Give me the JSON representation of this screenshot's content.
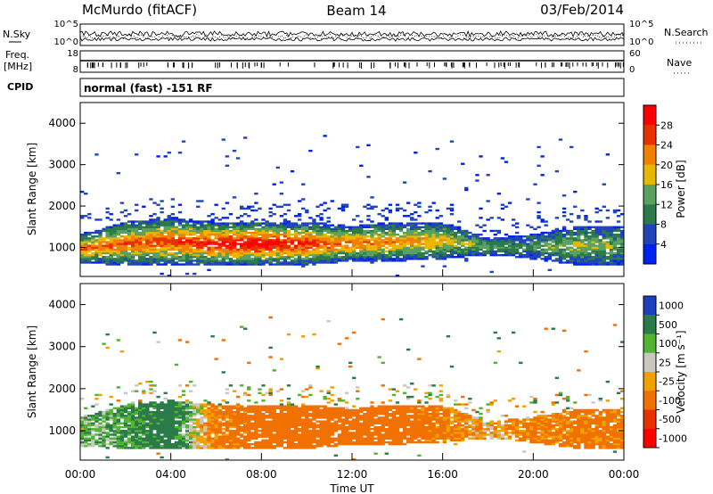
{
  "header": {
    "station": "McMurdo (fitACF)",
    "beam": "Beam 14",
    "date": "03/Feb/2014"
  },
  "top_panels": {
    "nsky_label": "N.Sky",
    "nsearch_label": "N.Search",
    "noise_ticks": [
      "10^5",
      "10^0"
    ],
    "freq_label_1": "Freq.",
    "freq_label_2": "[MHz]",
    "freq_ticks": [
      "18",
      "8"
    ],
    "nave_label": "Nave",
    "nave_ticks": [
      "60",
      "0"
    ],
    "cpid_label": "CPID",
    "cpid_value": "normal (fast) -151 RF"
  },
  "colors": {
    "power_scale": [
      "#0022ee",
      "#2244bb",
      "#2a7a4a",
      "#5aa060",
      "#e8b800",
      "#f08000",
      "#e83000",
      "#ff0000"
    ],
    "velocity_scale": [
      "#1c3fbb",
      "#2a7a4a",
      "#52b430",
      "#c8c8c0",
      "#f0a000",
      "#f07000",
      "#e83000",
      "#ff0000"
    ]
  },
  "chart_data": [
    {
      "type": "heatmap",
      "name": "power",
      "ylabel": "Slant Range [km]",
      "yticks": [
        "1000",
        "2000",
        "3000",
        "4000"
      ],
      "ylim": [
        300,
        4500
      ],
      "colorbar_label": "Power [dB]",
      "colorbar_ticks": [
        "4",
        "8",
        "12",
        "16",
        "20",
        "24",
        "28"
      ],
      "echo_band": {
        "x_hours": [
          0,
          2,
          4,
          6,
          8,
          10,
          12,
          14,
          16,
          18,
          20,
          22,
          24
        ],
        "lower_km": [
          600,
          550,
          550,
          550,
          550,
          550,
          650,
          650,
          700,
          800,
          700,
          550,
          550
        ],
        "upper_km": [
          1300,
          1600,
          1700,
          1600,
          1600,
          1600,
          1500,
          1600,
          1600,
          1200,
          1300,
          1500,
          1500
        ],
        "peak_power_db": [
          22,
          24,
          24,
          28,
          30,
          26,
          22,
          20,
          18,
          12,
          10,
          16,
          12
        ]
      }
    },
    {
      "type": "heatmap",
      "name": "velocity",
      "xlabel": "Time UT",
      "xticks": [
        "00:00",
        "04:00",
        "08:00",
        "12:00",
        "16:00",
        "20:00",
        "00:00"
      ],
      "ylabel": "Slant Range [km]",
      "yticks": [
        "1000",
        "2000",
        "3000",
        "4000"
      ],
      "ylim": [
        300,
        4500
      ],
      "colorbar_label": "Velocity [m s⁻¹]",
      "colorbar_ticks": [
        "1000",
        "500",
        "100",
        "25",
        "-25",
        "-100",
        "-500",
        "-1000"
      ],
      "echo_band": {
        "x_hours": [
          0,
          2,
          4,
          6,
          8,
          10,
          12,
          14,
          16,
          18,
          20,
          22,
          24
        ],
        "lower_km": [
          600,
          550,
          550,
          550,
          550,
          550,
          650,
          650,
          700,
          800,
          700,
          550,
          550
        ],
        "upper_km": [
          1300,
          1600,
          1700,
          1600,
          1600,
          1600,
          1500,
          1600,
          1600,
          1200,
          1300,
          1500,
          1500
        ],
        "dominant_velocity": [
          50,
          100,
          200,
          -150,
          -200,
          -200,
          -200,
          -200,
          -150,
          -50,
          -150,
          -150,
          -150
        ]
      }
    }
  ]
}
